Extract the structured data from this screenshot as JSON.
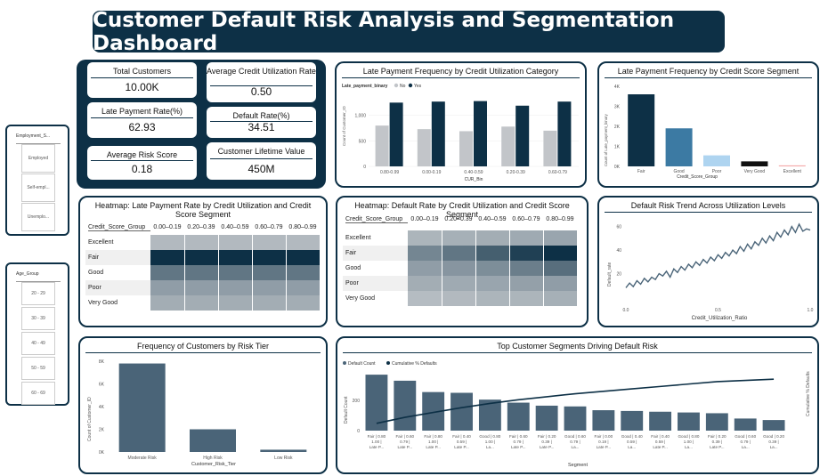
{
  "title": "Customer Default Risk Analysis and Segmentation Dashboard",
  "slicers": {
    "employment": {
      "header": "Employment_S...",
      "items": [
        "Employed",
        "Self-empl...",
        "Unemplo..."
      ]
    },
    "age": {
      "header": "Age_Group",
      "items": [
        "20 - 29",
        "30 - 39",
        "40 - 49",
        "50 - 59",
        "60 - 69"
      ]
    }
  },
  "kpis": {
    "total_customers": {
      "label": "Total Customers",
      "value": "10.00K"
    },
    "avg_credit_util": {
      "label": "Average Credit Utilization Rate",
      "value": "0.50"
    },
    "late_payment_rate": {
      "label": "Late Payment Rate(%)",
      "value": "62.93"
    },
    "default_rate": {
      "label": "Default Rate(%)",
      "value": "34.51"
    },
    "avg_risk_score": {
      "label": "Average Risk Score",
      "value": "0.18"
    },
    "clv": {
      "label": "Customer Lifetime Value",
      "value": "450M"
    }
  },
  "colors": {
    "navy": "#0d3046",
    "grey": "#c2c5c9",
    "steel": "#4a6478",
    "mid_blue": "#3c7aa3",
    "light_blue": "#aed4f0",
    "black": "#111111",
    "pink": "#f4a8a8"
  },
  "chart_data": [
    {
      "id": "late_by_util",
      "type": "bar",
      "title": "Late Payment Frequency by Credit Utilization Category",
      "legend_title": "Late_payment_binary",
      "xlabel": "CUR_Bin",
      "ylabel": "Count of Customer_ID",
      "categories": [
        "0.80-0.99",
        "0.00-0.19",
        "0.40-0.59",
        "0.20-0.39",
        "0.60-0.79"
      ],
      "series": [
        {
          "name": "No",
          "values": [
            800,
            730,
            690,
            780,
            700
          ]
        },
        {
          "name": "Yes",
          "values": [
            1250,
            1270,
            1280,
            1190,
            1270
          ]
        }
      ],
      "ylim": [
        0,
        1500
      ],
      "yticks": [
        "0",
        "500",
        "1,000"
      ]
    },
    {
      "id": "late_by_score",
      "type": "bar",
      "title": "Late Payment Frequency by Credit Score Segment",
      "xlabel": "Credit_Score_Group",
      "ylabel": "Count of Late_payment_binary",
      "categories": [
        "Fair",
        "Good",
        "Poor",
        "Very Good",
        "Excellent"
      ],
      "values": [
        3600,
        1900,
        550,
        250,
        50
      ],
      "ylim": [
        0,
        4000
      ],
      "yticks": [
        "0K",
        "1K",
        "2K",
        "3K",
        "4K"
      ]
    },
    {
      "id": "hm_late",
      "type": "heatmap",
      "title": "Heatmap: Late Payment Rate by Credit Utilization and Credit Score Segment",
      "row_header": "Credit_Score_Group",
      "columns": [
        "0.00–0.19",
        "0.20–0.39",
        "0.40–0.59",
        "0.60–0.79",
        "0.80–0.99"
      ],
      "rows": [
        "Excellent",
        "Fair",
        "Good",
        "Poor",
        "Very Good"
      ],
      "intensity": [
        [
          0.12,
          0.12,
          0.12,
          0.12,
          0.12
        ],
        [
          1.0,
          1.0,
          1.0,
          1.0,
          1.0
        ],
        [
          0.55,
          0.55,
          0.55,
          0.55,
          0.55
        ],
        [
          0.3,
          0.3,
          0.3,
          0.3,
          0.3
        ],
        [
          0.2,
          0.2,
          0.2,
          0.2,
          0.2
        ]
      ]
    },
    {
      "id": "hm_default",
      "type": "heatmap",
      "title": "Heatmap: Default Rate by Credit Utilization and Credit Score Segment",
      "row_header": "Credit_Score_Group",
      "columns": [
        "0.00–0.19",
        "0.20–0.39",
        "0.40–0.59",
        "0.60–0.79",
        "0.80–0.99"
      ],
      "rows": [
        "Excellent",
        "Fair",
        "Good",
        "Poor",
        "Very Good"
      ],
      "intensity": [
        [
          0.15,
          0.18,
          0.2,
          0.22,
          0.25
        ],
        [
          0.45,
          0.55,
          0.7,
          0.9,
          1.0
        ],
        [
          0.3,
          0.35,
          0.4,
          0.5,
          0.6
        ],
        [
          0.2,
          0.22,
          0.25,
          0.28,
          0.3
        ],
        [
          0.1,
          0.12,
          0.15,
          0.15,
          0.18
        ]
      ]
    },
    {
      "id": "trend",
      "type": "line",
      "title": "Default Risk Trend Across Utilization Levels",
      "xlabel": "Credit_Utilization_Ratio",
      "ylabel": "Default_rate",
      "xlim": [
        0,
        1
      ],
      "ylim": [
        0,
        65
      ],
      "xticks": [
        "0.0",
        "0.5",
        "1.0"
      ],
      "yticks": [
        "20",
        "40",
        "60"
      ],
      "x": [
        0.0,
        0.02,
        0.04,
        0.06,
        0.08,
        0.1,
        0.12,
        0.14,
        0.16,
        0.18,
        0.2,
        0.22,
        0.24,
        0.26,
        0.28,
        0.3,
        0.32,
        0.34,
        0.36,
        0.38,
        0.4,
        0.42,
        0.44,
        0.46,
        0.48,
        0.5,
        0.52,
        0.54,
        0.56,
        0.58,
        0.6,
        0.62,
        0.64,
        0.66,
        0.68,
        0.7,
        0.72,
        0.74,
        0.76,
        0.78,
        0.8,
        0.82,
        0.84,
        0.86,
        0.88,
        0.9,
        0.92,
        0.94,
        0.96,
        0.98,
        1.0
      ],
      "y": [
        8,
        12,
        9,
        14,
        11,
        16,
        13,
        17,
        15,
        20,
        18,
        22,
        17,
        24,
        21,
        26,
        23,
        28,
        25,
        30,
        27,
        32,
        29,
        34,
        31,
        36,
        33,
        38,
        35,
        40,
        37,
        43,
        39,
        45,
        41,
        47,
        44,
        50,
        46,
        52,
        48,
        55,
        51,
        57,
        53,
        60,
        55,
        62,
        56,
        58,
        57
      ]
    },
    {
      "id": "risk_tier",
      "type": "bar",
      "title": "Frequency of Customers by Risk Tier",
      "xlabel": "Customer_Risk_Tier",
      "ylabel": "Count of Customer_ID",
      "categories": [
        "Moderate Risk",
        "High Risk",
        "Low Risk"
      ],
      "values": [
        7800,
        2000,
        200
      ],
      "ylim": [
        0,
        8000
      ],
      "yticks": [
        "0K",
        "2K",
        "4K",
        "6K",
        "8K"
      ]
    },
    {
      "id": "segments",
      "type": "bar",
      "title": "Top Customer Segments Driving Default Risk",
      "xlabel": "Segment",
      "ylabel": "Default Count",
      "y2label": "Cumulative % Defaults",
      "legend": [
        "Default Count",
        "Cumulative % Defaults"
      ],
      "categories": [
        "Fair | 0.80 - 1.00 | Late P...",
        "Fair | 0.60 - 0.79 | Late P...",
        "Fair | 0.80 - 1.00 | Late P...",
        "Fair | 0.40 - 0.59 | Late P...",
        "Good | 0.80 - 1.00 | La...",
        "Fair | 0.60 - 0.79 | Late P...",
        "Fair | 0.20 - 0.39 | Late P...",
        "Good | 0.60 - 0.79 | La...",
        "Fair | 0.00 - 0.19 | Late P...",
        "Good | 0.40 - 0.59 | La...",
        "Fair | 0.40 - 0.59 | Late P...",
        "Good | 0.80 - 1.00 | La...",
        "Fair | 0.20 - 0.39 | Late P...",
        "Good | 0.60 - 0.79 | La...",
        "Good | 0.20 - 0.39 | La..."
      ],
      "values": [
        370,
        330,
        255,
        250,
        205,
        185,
        165,
        160,
        135,
        130,
        125,
        120,
        115,
        80,
        70
      ],
      "cumulative": [
        0.12,
        0.22,
        0.3,
        0.38,
        0.45,
        0.51,
        0.56,
        0.61,
        0.65,
        0.69,
        0.73,
        0.77,
        0.81,
        0.83,
        0.85
      ],
      "ylim": [
        0,
        400
      ],
      "yticks": [
        "0",
        "200"
      ]
    }
  ]
}
